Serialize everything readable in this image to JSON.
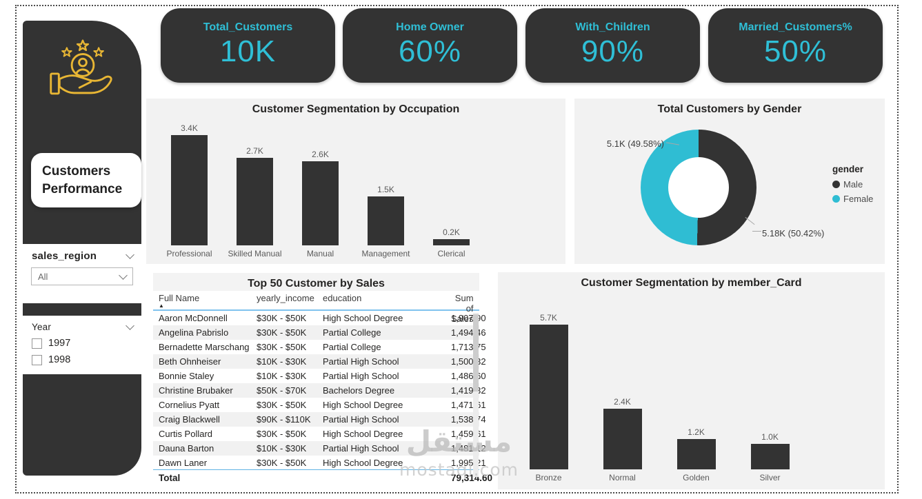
{
  "colors": {
    "dark": "#333333",
    "teal": "#2fbfd6",
    "gold": "#e8b634",
    "panel_bg": "#f2f2f2"
  },
  "sidebar": {
    "title": "Customers Performance",
    "icon": "customer-care-icon",
    "filters": {
      "region_label": "sales_region",
      "region_value": "All",
      "year_label": "Year",
      "year_options": [
        {
          "label": "1997",
          "checked": false
        },
        {
          "label": "1998",
          "checked": false
        }
      ]
    }
  },
  "kpis": [
    {
      "label": "Total_Customers",
      "value": "10K"
    },
    {
      "label": "Home Owner",
      "value": "60%"
    },
    {
      "label": "With_Children",
      "value": "90%"
    },
    {
      "label": "Married_Customers%",
      "value": "50%"
    }
  ],
  "chart_data": [
    {
      "type": "bar",
      "title": "Customer Segmentation by Occupation",
      "categories": [
        "Professional",
        "Skilled Manual",
        "Manual",
        "Management",
        "Clerical"
      ],
      "values": [
        3.4,
        2.7,
        2.6,
        1.5,
        0.2
      ],
      "value_labels": [
        "3.4K",
        "2.7K",
        "2.6K",
        "1.5K",
        "0.2K"
      ],
      "xlabel": "",
      "ylabel": "",
      "ylim": [
        0,
        3.6
      ],
      "grid": false,
      "bar_color": "#333333"
    },
    {
      "type": "pie",
      "title": "Total Customers by Gender",
      "legend_title": "gender",
      "legend_position": "right",
      "donut": true,
      "series": [
        {
          "name": "Male",
          "value": 5180,
          "pct": 50.42,
          "label": "5.18K (50.42%)",
          "color": "#333333"
        },
        {
          "name": "Female",
          "value": 5100,
          "pct": 49.58,
          "label": "5.1K (49.58%)",
          "color": "#2fbdd3"
        }
      ]
    },
    {
      "type": "table",
      "title": "Top 50 Customer by Sales",
      "columns": [
        "Full Name",
        "yearly_income",
        "education",
        "Sum of Sales"
      ],
      "sorted_by": "Full Name",
      "sort_direction": "asc",
      "rows": [
        [
          "Aaron McDonnell",
          "$30K - $50K",
          "High School Degree",
          "1,907.90"
        ],
        [
          "Angelina Pabrislo",
          "$30K - $50K",
          "Partial College",
          "1,494.46"
        ],
        [
          "Bernadette Marschang",
          "$30K - $50K",
          "Partial College",
          "1,713.75"
        ],
        [
          "Beth Ohnheiser",
          "$10K - $30K",
          "Partial High School",
          "1,500.32"
        ],
        [
          "Bonnie Staley",
          "$10K - $30K",
          "Partial High School",
          "1,486.60"
        ],
        [
          "Christine Brubaker",
          "$50K - $70K",
          "Bachelors Degree",
          "1,419.32"
        ],
        [
          "Cornelius Pyatt",
          "$30K - $50K",
          "High School Degree",
          "1,471.61"
        ],
        [
          "Craig Blackwell",
          "$90K - $110K",
          "Partial High School",
          "1,538.74"
        ],
        [
          "Curtis Pollard",
          "$30K - $50K",
          "High School Degree",
          "1,459.61"
        ],
        [
          "Dauna Barton",
          "$10K - $30K",
          "Partial High School",
          "1,481.12"
        ],
        [
          "Dawn Laner",
          "$30K - $50K",
          "High School Degree",
          "1,995.21"
        ]
      ],
      "total_label": "Total",
      "total_value": "79,314.60"
    },
    {
      "type": "bar",
      "title": "Customer Segmentation by member_Card",
      "categories": [
        "Bronze",
        "Normal",
        "Golden",
        "Silver"
      ],
      "values": [
        5.7,
        2.4,
        1.2,
        1.0
      ],
      "value_labels": [
        "5.7K",
        "2.4K",
        "1.2K",
        "1.0K"
      ],
      "xlabel": "",
      "ylabel": "",
      "ylim": [
        0,
        6.0
      ],
      "grid": false,
      "bar_color": "#333333"
    }
  ],
  "watermark": {
    "line1": "مستقل",
    "line2": "mostaql.com"
  }
}
